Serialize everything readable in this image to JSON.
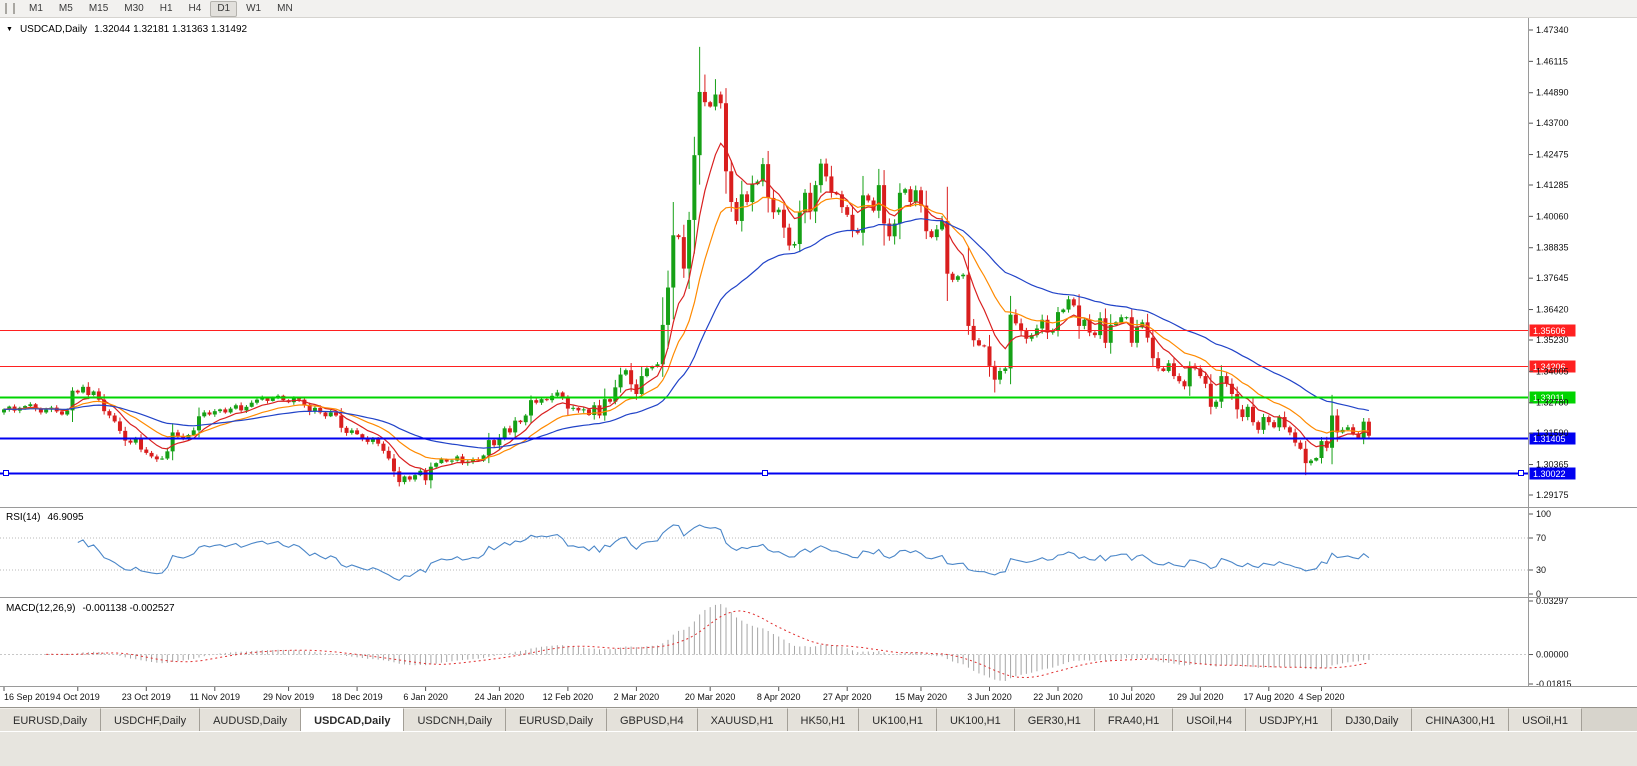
{
  "toolbar": {
    "timeframes": [
      "M1",
      "M5",
      "M15",
      "M30",
      "H1",
      "H4",
      "D1",
      "W1",
      "MN"
    ],
    "active_timeframe": "D1"
  },
  "chart_data": [
    {
      "type": "candlestick",
      "title": "USDCAD,Daily",
      "ohlc_display_text": "1.32044 1.32181 1.31363 1.31492",
      "ohlc": {
        "open": 1.32044,
        "high": 1.32181,
        "low": 1.31363,
        "close": 1.31492
      },
      "y_ticks": [
        "1.47340",
        "1.46115",
        "1.44890",
        "1.43700",
        "1.42475",
        "1.41285",
        "1.40060",
        "1.38835",
        "1.37645",
        "1.36420",
        "1.35230",
        "1.34005",
        "1.32780",
        "1.31590",
        "1.30365",
        "1.29175"
      ],
      "x_labels": [
        "16 Sep 2019",
        "4 Oct 2019",
        "23 Oct 2019",
        "11 Nov 2019",
        "29 Nov 2019",
        "18 Dec 2019",
        "6 Jan 2020",
        "24 Jan 2020",
        "12 Feb 2020",
        "2 Mar 2020",
        "20 Mar 2020",
        "8 Apr 2020",
        "27 Apr 2020",
        "15 May 2020",
        "3 Jun 2020",
        "22 Jun 2020",
        "10 Jul 2020",
        "29 Jul 2020",
        "17 Aug 2020",
        "4 Sep 2020"
      ],
      "x_label_indices": [
        0,
        14,
        27,
        40,
        54,
        67,
        80,
        94,
        107,
        120,
        134,
        147,
        160,
        174,
        187,
        200,
        214,
        227,
        240,
        250
      ],
      "closes": [
        1.3252,
        1.3263,
        1.3247,
        1.3258,
        1.3265,
        1.3272,
        1.3255,
        1.324,
        1.3251,
        1.3259,
        1.3244,
        1.3232,
        1.3248,
        1.3325,
        1.3318,
        1.334,
        1.3308,
        1.3322,
        1.329,
        1.3245,
        1.3228,
        1.3205,
        1.3168,
        1.313,
        1.3122,
        1.3138,
        1.3095,
        1.3082,
        1.3068,
        1.3057,
        1.306,
        1.3088,
        1.3162,
        1.3148,
        1.314,
        1.3152,
        1.317,
        1.3225,
        1.324,
        1.3232,
        1.3245,
        1.3252,
        1.324,
        1.3255,
        1.3268,
        1.3248,
        1.3262,
        1.3278,
        1.329,
        1.3298,
        1.3285,
        1.3295,
        1.3305,
        1.3288,
        1.328,
        1.3298,
        1.329,
        1.327,
        1.3245,
        1.3258,
        1.324,
        1.3225,
        1.324,
        1.3228,
        1.318,
        1.316,
        1.317,
        1.3155,
        1.3138,
        1.3125,
        1.3135,
        1.3118,
        1.309,
        1.306,
        1.301,
        1.2968,
        1.299,
        1.2978,
        1.2995,
        1.3012,
        1.2975,
        1.3028,
        1.3042,
        1.3056,
        1.3048,
        1.3052,
        1.3068,
        1.3042,
        1.3048,
        1.3058,
        1.3052,
        1.3072,
        1.3132,
        1.3112,
        1.3142,
        1.3178,
        1.3162,
        1.3208,
        1.3202,
        1.3228,
        1.3288,
        1.3278,
        1.3292,
        1.3288,
        1.3305,
        1.3318,
        1.3298,
        1.3255,
        1.3258,
        1.3248,
        1.3252,
        1.323,
        1.3268,
        1.3228,
        1.3292,
        1.3282,
        1.3338,
        1.3388,
        1.3405,
        1.335,
        1.3312,
        1.3382,
        1.3412,
        1.3418,
        1.3428,
        1.3582,
        1.3728,
        1.3932,
        1.3925,
        1.3802,
        1.3992,
        1.4245,
        1.4492,
        1.4452,
        1.4435,
        1.4482,
        1.4448,
        1.4182,
        1.4062,
        1.3988,
        1.4092,
        1.4062,
        1.4132,
        1.4142,
        1.421,
        1.4078,
        1.4022,
        1.4032,
        1.3962,
        1.3892,
        1.3898,
        1.4022,
        1.4098,
        1.4025,
        1.4128,
        1.4212,
        1.4162,
        1.4098,
        1.4092,
        1.4042,
        1.4012,
        1.3952,
        1.3942,
        1.4088,
        1.4068,
        1.4028,
        1.4128,
        1.3978,
        1.3928,
        1.3978,
        1.4098,
        1.4112,
        1.4062,
        1.4108,
        1.4048,
        1.3948,
        1.3925,
        1.3955,
        1.3988,
        1.3782,
        1.3758,
        1.3772,
        1.3778,
        1.3578,
        1.3522,
        1.3502,
        1.3498,
        1.3422,
        1.3368,
        1.3402,
        1.3412,
        1.3622,
        1.3588,
        1.3558,
        1.3528,
        1.3542,
        1.3568,
        1.3602,
        1.3552,
        1.3562,
        1.3632,
        1.3642,
        1.3682,
        1.3658,
        1.3578,
        1.3602,
        1.3552,
        1.3542,
        1.3608,
        1.3512,
        1.3582,
        1.3592,
        1.3612,
        1.3612,
        1.3512,
        1.3572,
        1.3592,
        1.3532,
        1.3452,
        1.3412,
        1.3402,
        1.3432,
        1.3382,
        1.3362,
        1.3342,
        1.3422,
        1.3412,
        1.3382,
        1.3352,
        1.3262,
        1.3282,
        1.3382,
        1.3352,
        1.3312,
        1.3252,
        1.3222,
        1.3262,
        1.3202,
        1.3172,
        1.3222,
        1.3202,
        1.3182,
        1.3222,
        1.3182,
        1.3162,
        1.3122,
        1.3098,
        1.3042,
        1.3052,
        1.3062,
        1.3128,
        1.3102,
        1.3228,
        1.3162,
        1.3172,
        1.3182,
        1.3158,
        1.3142,
        1.3204,
        1.3149
      ],
      "wick_overrides": [
        {
          "i": 75,
          "low": 1.2951
        },
        {
          "i": 125,
          "high": 1.369
        },
        {
          "i": 132,
          "high": 1.4668
        },
        {
          "i": 133,
          "high": 1.456
        },
        {
          "i": 135,
          "high": 1.4542
        },
        {
          "i": 188,
          "low": 1.3318
        },
        {
          "i": 247,
          "low": 1.2995
        },
        {
          "i": 259,
          "high": 1.32181,
          "low": 1.31363
        }
      ],
      "colors": {
        "up": "#16A016",
        "down": "#D91E1E"
      },
      "moving_averages": [
        {
          "period": 8,
          "color": "#D92020"
        },
        {
          "period": 17,
          "color": "#FF8A00"
        },
        {
          "period": 40,
          "color": "#2143C8"
        }
      ],
      "levels": [
        {
          "value": 1.35606,
          "label": "1.35606",
          "color": "#FF2020",
          "width": 1,
          "selected": false
        },
        {
          "value": 1.34206,
          "label": "1.34206",
          "color": "#FF2020",
          "width": 1,
          "selected": false
        },
        {
          "value": 1.33011,
          "label": "1.33011",
          "color": "#00D400",
          "width": 2,
          "selected": false
        },
        {
          "value": 1.31405,
          "label": "1.31405",
          "color": "#0000F0",
          "width": 2,
          "selected": false
        },
        {
          "value": 1.30022,
          "label": "1.30022",
          "color": "#0000F0",
          "width": 2,
          "selected": true
        }
      ]
    },
    {
      "type": "line",
      "indicator": "RSI",
      "title": "RSI(14)",
      "value_display": "46.9095",
      "period": 14,
      "levels": [
        70,
        30
      ],
      "y_ticks": [
        "100",
        "70",
        "30",
        "0"
      ],
      "color": "#4A86C8"
    },
    {
      "type": "bar",
      "indicator": "MACD",
      "title": "MACD(12,26,9)",
      "value_display": "-0.001138 -0.002527",
      "params": {
        "fast": 12,
        "slow": 26,
        "signal": 9
      },
      "y_ticks": [
        "0.03297",
        "0.00000",
        "-0.01815"
      ],
      "histogram_color": "#A6A6A6",
      "signal_color": "#E03030"
    }
  ],
  "bottom_tabs": {
    "active_index": 3,
    "items": [
      "EURUSD,Daily",
      "USDCHF,Daily",
      "AUDUSD,Daily",
      "USDCAD,Daily",
      "USDCNH,Daily",
      "EURUSD,Daily",
      "GBPUSD,H4",
      "XAUUSD,H1",
      "HK50,H1",
      "UK100,H1",
      "UK100,H1",
      "GER30,H1",
      "FRA40,H1",
      "USOil,H4",
      "USDJPY,H1",
      "DJ30,Daily",
      "CHINA300,H1",
      "USOil,H1"
    ]
  }
}
